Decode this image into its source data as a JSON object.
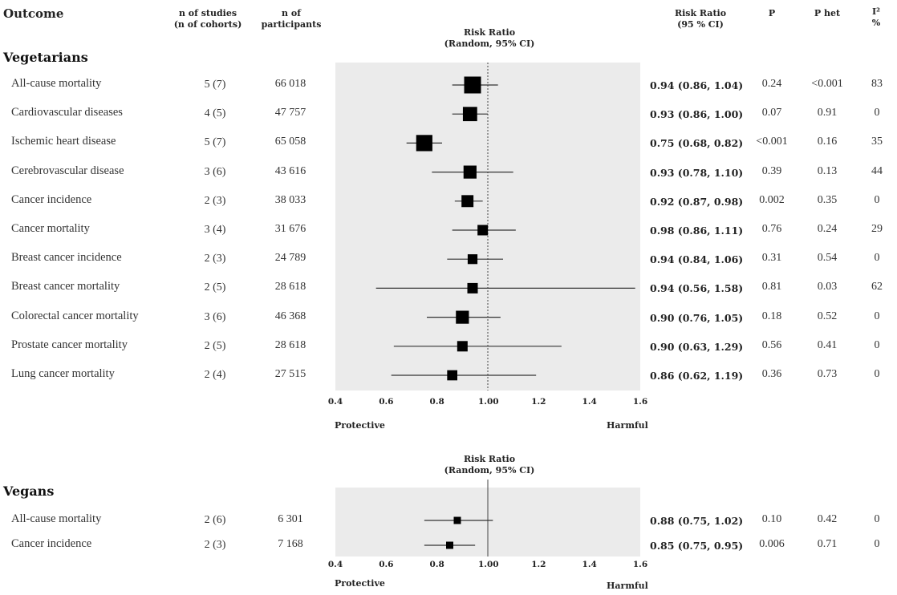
{
  "headers": {
    "outcome": "Outcome",
    "studies_line1": "n of studies",
    "studies_line2": "(n of cohorts)",
    "participants_line1": "n of",
    "participants_line2": "participants",
    "rr_line1": "Risk Ratio",
    "rr_line2": "(95 % CI)",
    "p": "P",
    "phet": "P het",
    "i2": "I²",
    "i2_unit": "%"
  },
  "plot_title_line1": "Risk Ratio",
  "plot_title_line2": "(Random, 95% CI)",
  "protective": "Protective",
  "harmful": "Harmful",
  "chart_data": [
    {
      "type": "forest",
      "section": "Vegetarians",
      "xlim": [
        0.4,
        1.6
      ],
      "xticks": [
        "0.4",
        "0.6",
        "0.8",
        "1.00",
        "1.2",
        "1.4",
        "1.6"
      ],
      "reference_line": 1.0,
      "rows": [
        {
          "outcome": "All-cause mortality",
          "studies": "5 (7)",
          "participants": "66 018",
          "rr": 0.94,
          "lo": 0.86,
          "hi": 1.04,
          "rr_text": "0.94 (0.86, 1.04)",
          "p": "0.24",
          "phet": "<0.001",
          "i2": "83",
          "weight": 1.0
        },
        {
          "outcome": "Cardiovascular diseases",
          "studies": "4 (5)",
          "participants": "47 757",
          "rr": 0.93,
          "lo": 0.86,
          "hi": 1.0,
          "rr_text": "0.93 (0.86, 1.00)",
          "p": "0.07",
          "phet": "0.91",
          "i2": "0",
          "weight": 0.8
        },
        {
          "outcome": "Ischemic heart disease",
          "studies": "5 (7)",
          "participants": "65 058",
          "rr": 0.75,
          "lo": 0.68,
          "hi": 0.82,
          "rr_text": "0.75 (0.68, 0.82)",
          "p": "<0.001",
          "phet": "0.16",
          "i2": "35",
          "weight": 0.95
        },
        {
          "outcome": "Cerebrovascular disease",
          "studies": "3 (6)",
          "participants": "43 616",
          "rr": 0.93,
          "lo": 0.78,
          "hi": 1.1,
          "rr_text": "0.93 (0.78, 1.10)",
          "p": "0.39",
          "phet": "0.13",
          "i2": "44",
          "weight": 0.7
        },
        {
          "outcome": "Cancer incidence",
          "studies": "2 (3)",
          "participants": "38 033",
          "rr": 0.92,
          "lo": 0.87,
          "hi": 0.98,
          "rr_text": "0.92 (0.87, 0.98)",
          "p": "0.002",
          "phet": "0.35",
          "i2": "0",
          "weight": 0.62
        },
        {
          "outcome": "Cancer mortality",
          "studies": "3 (4)",
          "participants": "31 676",
          "rr": 0.98,
          "lo": 0.86,
          "hi": 1.11,
          "rr_text": "0.98 (0.86, 1.11)",
          "p": "0.76",
          "phet": "0.24",
          "i2": "29",
          "weight": 0.5
        },
        {
          "outcome": "Breast cancer incidence",
          "studies": "2 (3)",
          "participants": "24 789",
          "rr": 0.94,
          "lo": 0.84,
          "hi": 1.06,
          "rr_text": "0.94 (0.84, 1.06)",
          "p": "0.31",
          "phet": "0.54",
          "i2": "0",
          "weight": 0.45
        },
        {
          "outcome": "Breast cancer mortality",
          "studies": "2 (5)",
          "participants": "28 618",
          "rr": 0.94,
          "lo": 0.56,
          "hi": 1.58,
          "rr_text": "0.94 (0.56, 1.58)",
          "p": "0.81",
          "phet": "0.03",
          "i2": "62",
          "weight": 0.5
        },
        {
          "outcome": "Colorectal cancer mortality",
          "studies": "3 (6)",
          "participants": "46 368",
          "rr": 0.9,
          "lo": 0.76,
          "hi": 1.05,
          "rr_text": "0.90 (0.76, 1.05)",
          "p": "0.18",
          "phet": "0.52",
          "i2": "0",
          "weight": 0.7
        },
        {
          "outcome": "Prostate cancer mortality",
          "studies": "2 (5)",
          "participants": "28 618",
          "rr": 0.9,
          "lo": 0.63,
          "hi": 1.29,
          "rr_text": "0.90 (0.63, 1.29)",
          "p": "0.56",
          "phet": "0.41",
          "i2": "0",
          "weight": 0.5
        },
        {
          "outcome": "Lung cancer mortality",
          "studies": "2 (4)",
          "participants": "27 515",
          "rr": 0.86,
          "lo": 0.62,
          "hi": 1.19,
          "rr_text": "0.86 (0.62, 1.19)",
          "p": "0.36",
          "phet": "0.73",
          "i2": "0",
          "weight": 0.48
        }
      ]
    },
    {
      "type": "forest",
      "section": "Vegans",
      "xlim": [
        0.4,
        1.6
      ],
      "xticks": [
        "0.4",
        "0.6",
        "0.8",
        "1.00",
        "1.2",
        "1.4",
        "1.6"
      ],
      "reference_line": 1.0,
      "rows": [
        {
          "outcome": "All-cause mortality",
          "studies": "2 (6)",
          "participants": "6 301",
          "rr": 0.88,
          "lo": 0.75,
          "hi": 1.02,
          "rr_text": "0.88 (0.75, 1.02)",
          "p": "0.10",
          "phet": "0.42",
          "i2": "0",
          "weight": 0.25
        },
        {
          "outcome": "Cancer incidence",
          "studies": "2 (3)",
          "participants": "7 168",
          "rr": 0.85,
          "lo": 0.75,
          "hi": 0.95,
          "rr_text": "0.85 (0.75, 0.95)",
          "p": "0.006",
          "phet": "0.71",
          "i2": "0",
          "weight": 0.25
        }
      ]
    }
  ],
  "colors": {
    "plot_bg": "#ebebeb",
    "marker": "#000000",
    "line": "#333333"
  }
}
